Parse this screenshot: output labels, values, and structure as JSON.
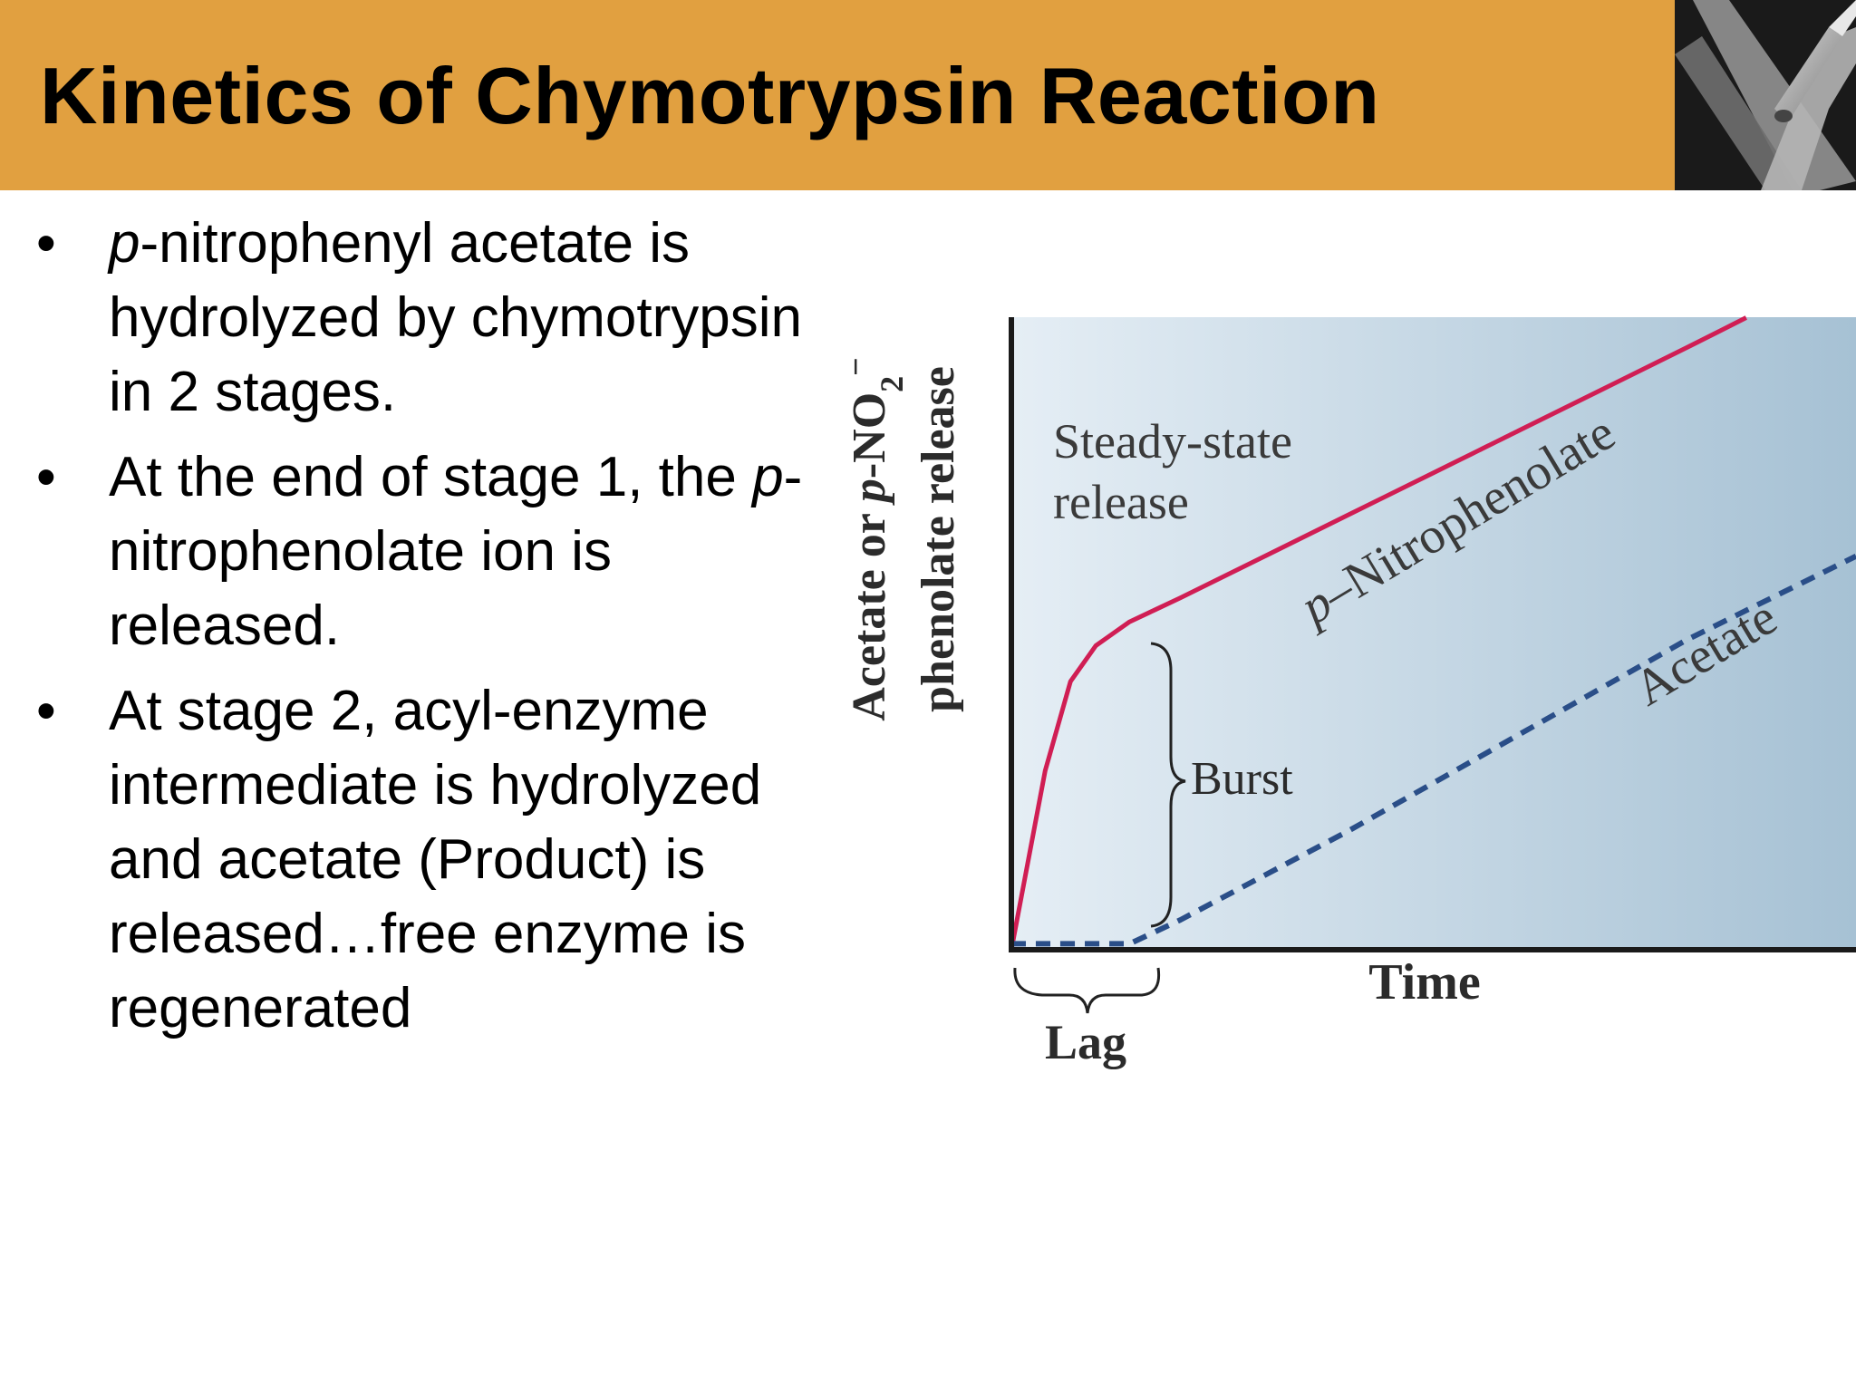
{
  "slide": {
    "title": "Kinetics of Chymotrypsin Reaction"
  },
  "bullets": [
    {
      "runs": [
        {
          "text": "p",
          "italic": true
        },
        {
          "text": "-nitrophenyl acetate is hydrolyzed by chymotrypsin in 2 stages.",
          "italic": false
        }
      ]
    },
    {
      "runs": [
        {
          "text": "At the end of stage 1, the ",
          "italic": false
        },
        {
          "text": "p",
          "italic": true
        },
        {
          "text": "-nitrophenolate ion is released.",
          "italic": false
        }
      ]
    },
    {
      "runs": [
        {
          "text": "At stage 2, acyl-enzyme intermediate is hydrolyzed and acetate (Product) is released…free enzyme is regenerated",
          "italic": false
        }
      ]
    }
  ],
  "chart_data": {
    "type": "line",
    "xlabel": "Time",
    "ylabel_line1": "Acetate or p-NO₂⁻",
    "ylabel_line2": "phenolate release",
    "xlim": [
      0,
      10
    ],
    "ylim": [
      0,
      10
    ],
    "grid": false,
    "series": [
      {
        "name": "p-Nitrophenolate",
        "color": "#d01e54",
        "style": "solid",
        "x": [
          0,
          0.4,
          0.7,
          1.0,
          1.4,
          2.0,
          4.0,
          6.0,
          8.0,
          8.7
        ],
        "y": [
          0,
          3.0,
          4.5,
          5.1,
          5.5,
          5.9,
          7.3,
          8.7,
          10.1,
          10.6
        ]
      },
      {
        "name": "Acetate",
        "color": "#2a4e88",
        "style": "dashed",
        "x": [
          0,
          1.4,
          2.0,
          4.0,
          6.0,
          8.0,
          10.0
        ],
        "y": [
          0.1,
          0.1,
          0.5,
          2.0,
          3.6,
          5.2,
          6.6
        ]
      }
    ],
    "annotations": {
      "steady_state_line1": "Steady-state",
      "steady_state_line2": "release",
      "burst": "Burst",
      "lag": "Lag",
      "series_label_nitro_prefix": "p",
      "series_label_nitro_rest": "–Nitrophenolate",
      "series_label_acetate": "Acetate"
    },
    "colors": {
      "panel_left": "#e5eef5",
      "panel_right": "#a6c1d4",
      "axis": "#1a1a1a"
    }
  }
}
